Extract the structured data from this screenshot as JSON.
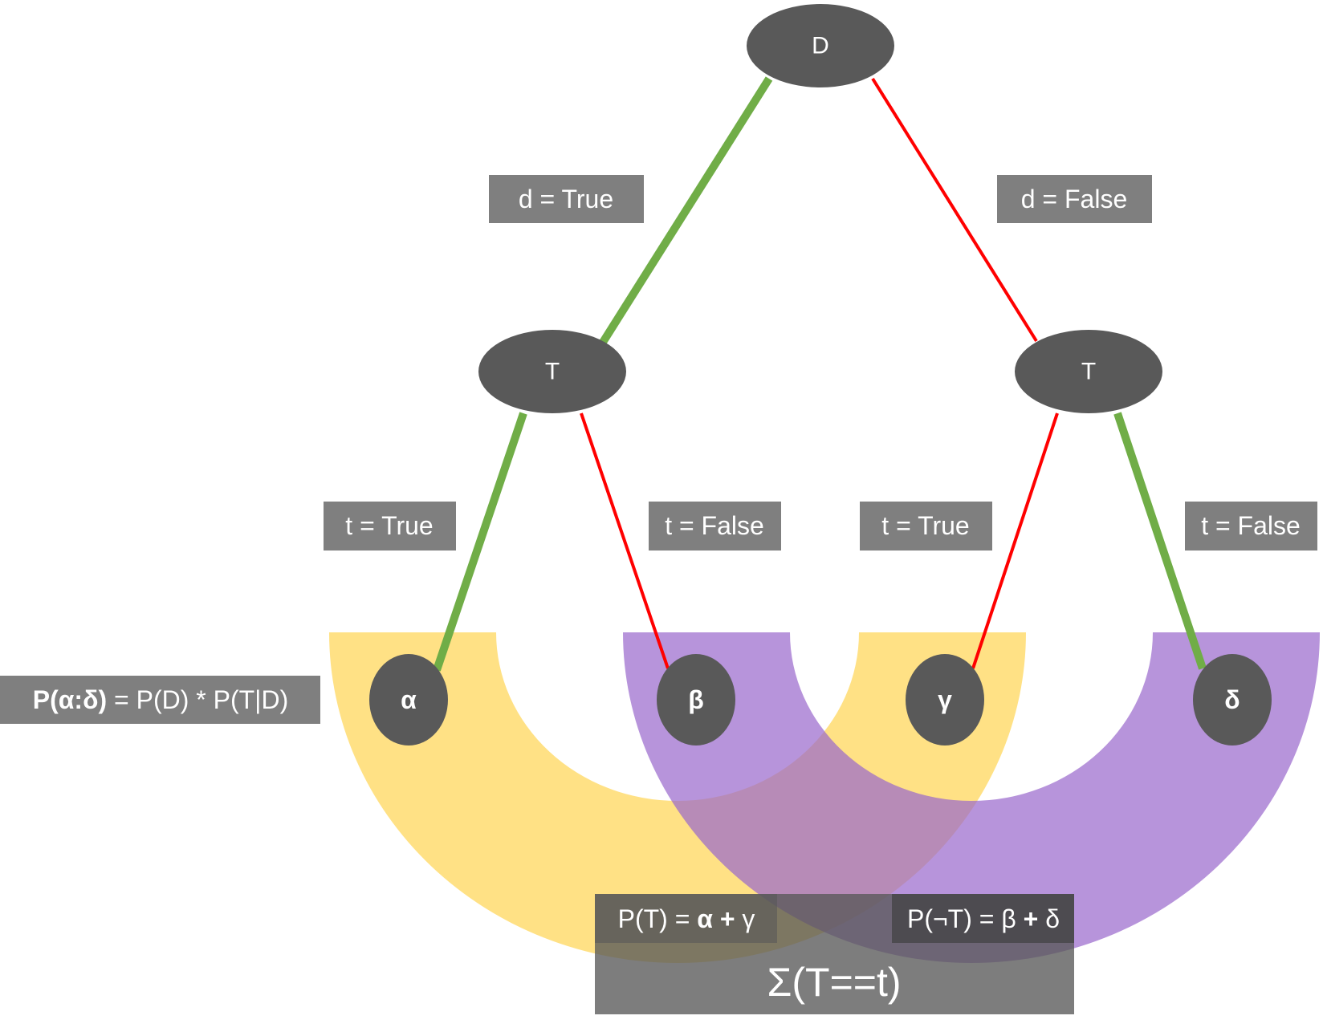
{
  "colors": {
    "node": "#595959",
    "label_box": "#7f7f7f",
    "true_edge": "#70ad47",
    "false_edge": "#ff0000",
    "yellow_band": "#ffd966",
    "purple_band": "#9966cc"
  },
  "nodes": {
    "root": "D",
    "left_t": "T",
    "right_t": "T",
    "alpha": "α",
    "beta": "β",
    "gamma": "γ",
    "delta": "δ"
  },
  "edge_labels": {
    "d_true": "d = True",
    "d_false": "d = False",
    "t_true_left": "t = True",
    "t_false_left": "t = False",
    "t_true_right": "t = True",
    "t_false_right": "t = False"
  },
  "formulas": {
    "joint": {
      "bold_part": "P(α:δ)",
      "rest": " = P(D) * P(T|D)"
    },
    "p_t": {
      "prefix": "P(T) = ",
      "alpha": "α",
      "plus": " + ",
      "gamma": "γ"
    },
    "p_not_t": {
      "prefix": "P(¬T) = ",
      "beta": "β",
      "plus": " + ",
      "delta": "δ"
    },
    "sum": "Σ(T==t)"
  }
}
